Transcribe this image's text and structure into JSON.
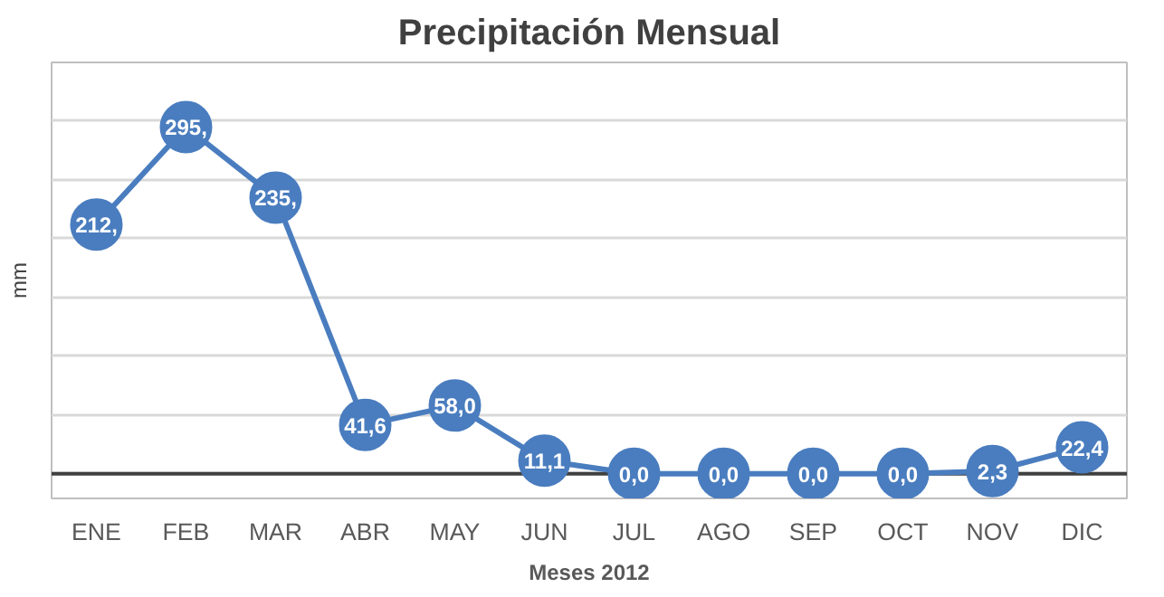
{
  "chart_data": {
    "type": "line",
    "title": "Precipitación Mensual",
    "xlabel": "Meses 2012",
    "ylabel": "mm",
    "categories": [
      "ENE",
      "FEB",
      "MAR",
      "ABR",
      "MAY",
      "JUN",
      "JUL",
      "AGO",
      "SEP",
      "OCT",
      "NOV",
      "DIC"
    ],
    "series": [
      {
        "color": "#4a7dbf",
        "values": [
          212,
          295,
          235,
          41.6,
          58.0,
          11.1,
          0.0,
          0.0,
          0.0,
          0.0,
          2.3,
          22.4
        ],
        "value_labels": [
          "212,",
          "295,",
          "235,",
          "41,6",
          "58,0",
          "11,1",
          "0,0",
          "0,0",
          "0,0",
          "0,0",
          "2,3",
          "22,4"
        ]
      }
    ],
    "ylim": [
      0,
      350
    ],
    "yticks": [
      {
        "value": 0,
        "label": null
      },
      {
        "value": 50,
        "label": null
      },
      {
        "value": 100,
        "label": null
      },
      {
        "value": 150,
        "label": null
      },
      {
        "value": 200,
        "label": null
      },
      {
        "value": 250,
        "label": null
      },
      {
        "value": 300,
        "label": null
      },
      {
        "value": 350,
        "label": null
      }
    ],
    "tick_labels": "x",
    "grid": "y",
    "marker": "circle",
    "line_style": "solid"
  }
}
